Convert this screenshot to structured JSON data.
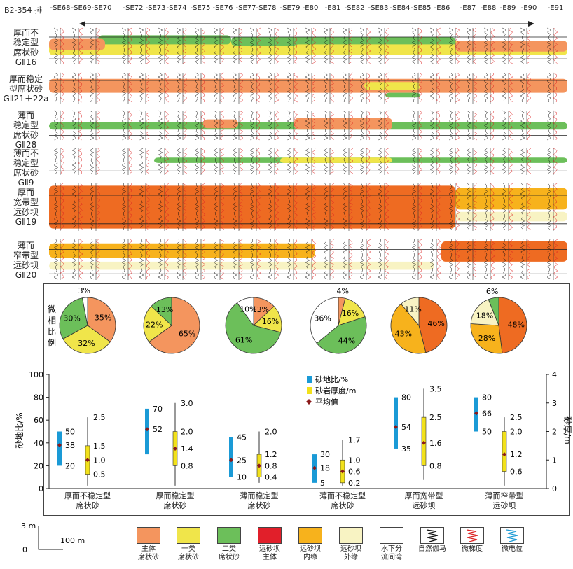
{
  "header": {
    "title": "B2-354 排",
    "wells": [
      "-SE68",
      "-SE69",
      "-SE70",
      "-SE72",
      "-SE73",
      "-SE74",
      "-SE75",
      "-SE76",
      "-SE77",
      "-SE78",
      "-SE79",
      "-E80",
      "-E81",
      "-SE82",
      "-SE83",
      "-SE84",
      "-SE85",
      "-E86",
      "-E87",
      "-E88",
      "-E89",
      "-E90",
      "-E91"
    ]
  },
  "sections": [
    {
      "label": "厚而不\n稳定型\n席状砂\nGⅡ16"
    },
    {
      "label": "厚而稳定\n型席状砂\nGⅡ21＋22a"
    },
    {
      "label": "薄而\n稳定型\n席状砂\nGⅡ28"
    },
    {
      "label": "薄而不\n稳定型\n席状砂\nGⅡ9"
    },
    {
      "label": "厚而\n宽带型\n远砂坝\nGⅡ19"
    },
    {
      "label": "薄而\n窄带型\n远砂坝\nGⅡ20"
    }
  ],
  "pie_title": "微相比例",
  "colors": {
    "main": "#f4955e",
    "class1": "#f0e54a",
    "class2": "#6cbf5a",
    "bar_main": "#e11f2a",
    "bar_inner": "#f7b21c",
    "bar_outer": "#f8f3c3",
    "channel": "#ffffff",
    "dark_orange": "#ee6b22",
    "blue": "#1a9ad6",
    "yellow": "#f2e11b",
    "diamond": "#8b1a1a"
  },
  "pies": [
    {
      "slices": [
        {
          "v": 35,
          "c": "main",
          "t": "35%"
        },
        {
          "v": 32,
          "c": "class1",
          "t": "32%"
        },
        {
          "v": 30,
          "c": "class2",
          "t": "30%"
        },
        {
          "v": 3,
          "c": "channel",
          "t": "3%"
        }
      ]
    },
    {
      "slices": [
        {
          "v": 65,
          "c": "main",
          "t": "65%"
        },
        {
          "v": 22,
          "c": "class1",
          "t": "22%"
        },
        {
          "v": 13,
          "c": "class2",
          "t": "13%"
        }
      ]
    },
    {
      "slices": [
        {
          "v": 13,
          "c": "main",
          "t": "13%"
        },
        {
          "v": 16,
          "c": "class1",
          "t": "16%"
        },
        {
          "v": 61,
          "c": "class2",
          "t": "61%"
        },
        {
          "v": 10,
          "c": "channel",
          "t": "10%"
        }
      ]
    },
    {
      "slices": [
        {
          "v": 4,
          "c": "main",
          "t": "4%"
        },
        {
          "v": 16,
          "c": "class1",
          "t": "16%"
        },
        {
          "v": 44,
          "c": "class2",
          "t": "44%"
        },
        {
          "v": 36,
          "c": "channel",
          "t": "36%"
        }
      ]
    },
    {
      "slices": [
        {
          "v": 46,
          "c": "dark_orange",
          "t": "46%"
        },
        {
          "v": 43,
          "c": "bar_inner",
          "t": "43%"
        },
        {
          "v": 11,
          "c": "bar_outer",
          "t": "11%"
        }
      ]
    },
    {
      "slices": [
        {
          "v": 48,
          "c": "dark_orange",
          "t": "48%"
        },
        {
          "v": 28,
          "c": "bar_inner",
          "t": "28%"
        },
        {
          "v": 18,
          "c": "bar_outer",
          "t": "18%"
        },
        {
          "v": 6,
          "c": "class2",
          "t": "6%"
        }
      ]
    }
  ],
  "chart_data": {
    "type": "box",
    "left_axis": {
      "label": "砂地比/%",
      "ticks": [
        0,
        20,
        40,
        60,
        80,
        100
      ],
      "range": [
        0,
        100
      ]
    },
    "right_axis": {
      "label": "砂厚/m",
      "ticks": [
        0,
        1,
        2,
        3,
        4
      ],
      "range": [
        0,
        4
      ]
    },
    "legend": [
      {
        "name": "砂地比/%",
        "color": "blue"
      },
      {
        "name": "砂岩厚度/m",
        "color": "yellow"
      },
      {
        "name": "平均值",
        "color": "diamond"
      }
    ],
    "categories": [
      "厚而不稳定型\n席状砂",
      "厚而稳定型\n席状砂",
      "薄而稳定型\n席状砂",
      "薄而不稳定型\n席状砂",
      "厚而宽带型\n远砂坝",
      "薄而窄带型\n远砂坝"
    ],
    "ratio": [
      {
        "min": 20,
        "max": 50,
        "mean": 38,
        "labels": [
          "50",
          "38",
          "20"
        ]
      },
      {
        "min": 30,
        "max": 70,
        "mean": 52,
        "labels": [
          "70",
          "52",
          ""
        ]
      },
      {
        "min": 10,
        "max": 45,
        "mean": 25,
        "labels": [
          "45",
          "25",
          "10"
        ]
      },
      {
        "min": 5,
        "max": 30,
        "mean": 18,
        "labels": [
          "30",
          "18",
          "5"
        ]
      },
      {
        "min": 35,
        "max": 80,
        "mean": 54,
        "labels": [
          "80",
          "54",
          "35"
        ]
      },
      {
        "min": 50,
        "max": 80,
        "mean": 66,
        "labels": [
          "80",
          "66",
          "50"
        ]
      }
    ],
    "thickness": [
      {
        "wmin": 0.1,
        "q1": 0.5,
        "mean": 1.0,
        "q3": 1.5,
        "wmax": 2.5,
        "labels": [
          "2.5",
          "1.5",
          "1.0",
          "0.5"
        ]
      },
      {
        "wmin": 0.1,
        "q1": 0.8,
        "mean": 1.4,
        "q3": 2.0,
        "wmax": 3.0,
        "labels": [
          "3.0",
          "2.0",
          "1.4",
          "0.8"
        ]
      },
      {
        "wmin": 0.2,
        "q1": 0.4,
        "mean": 0.8,
        "q3": 1.2,
        "wmax": 2.0,
        "labels": [
          "2.0",
          "1.2",
          "0.8",
          "0.4"
        ]
      },
      {
        "wmin": 0.1,
        "q1": 0.2,
        "mean": 0.6,
        "q3": 1.0,
        "wmax": 1.7,
        "labels": [
          "1.7",
          "1.0",
          "0.6",
          "0.2"
        ]
      },
      {
        "wmin": 0.3,
        "q1": 0.8,
        "mean": 1.6,
        "q3": 2.5,
        "wmax": 3.5,
        "labels": [
          "3.5",
          "2.5",
          "1.6",
          "0.8"
        ]
      },
      {
        "wmin": 0.1,
        "q1": 0.6,
        "mean": 1.2,
        "q3": 2.0,
        "wmax": 2.5,
        "labels": [
          "2.5",
          "2.0",
          "1.2",
          "0.6"
        ]
      }
    ]
  },
  "legend": [
    {
      "label": "主体\n席状砂",
      "color": "main"
    },
    {
      "label": "一类\n席状砂",
      "color": "class1"
    },
    {
      "label": "二类\n席状砂",
      "color": "class2"
    },
    {
      "label": "远砂坝\n主体",
      "color": "bar_main"
    },
    {
      "label": "远砂坝\n内缘",
      "color": "bar_inner"
    },
    {
      "label": "远砂坝\n外缘",
      "color": "bar_outer"
    },
    {
      "label": "水下分\n流间湾",
      "color": "channel"
    },
    {
      "label": "自然伽马",
      "color": "channel",
      "icon": "gamma"
    },
    {
      "label": "微梯度",
      "color": "channel",
      "icon": "grad"
    },
    {
      "label": "微电位",
      "color": "channel",
      "icon": "pot"
    }
  ],
  "scale": {
    "v": "3 m",
    "h": "100 m",
    "origin": "0"
  }
}
